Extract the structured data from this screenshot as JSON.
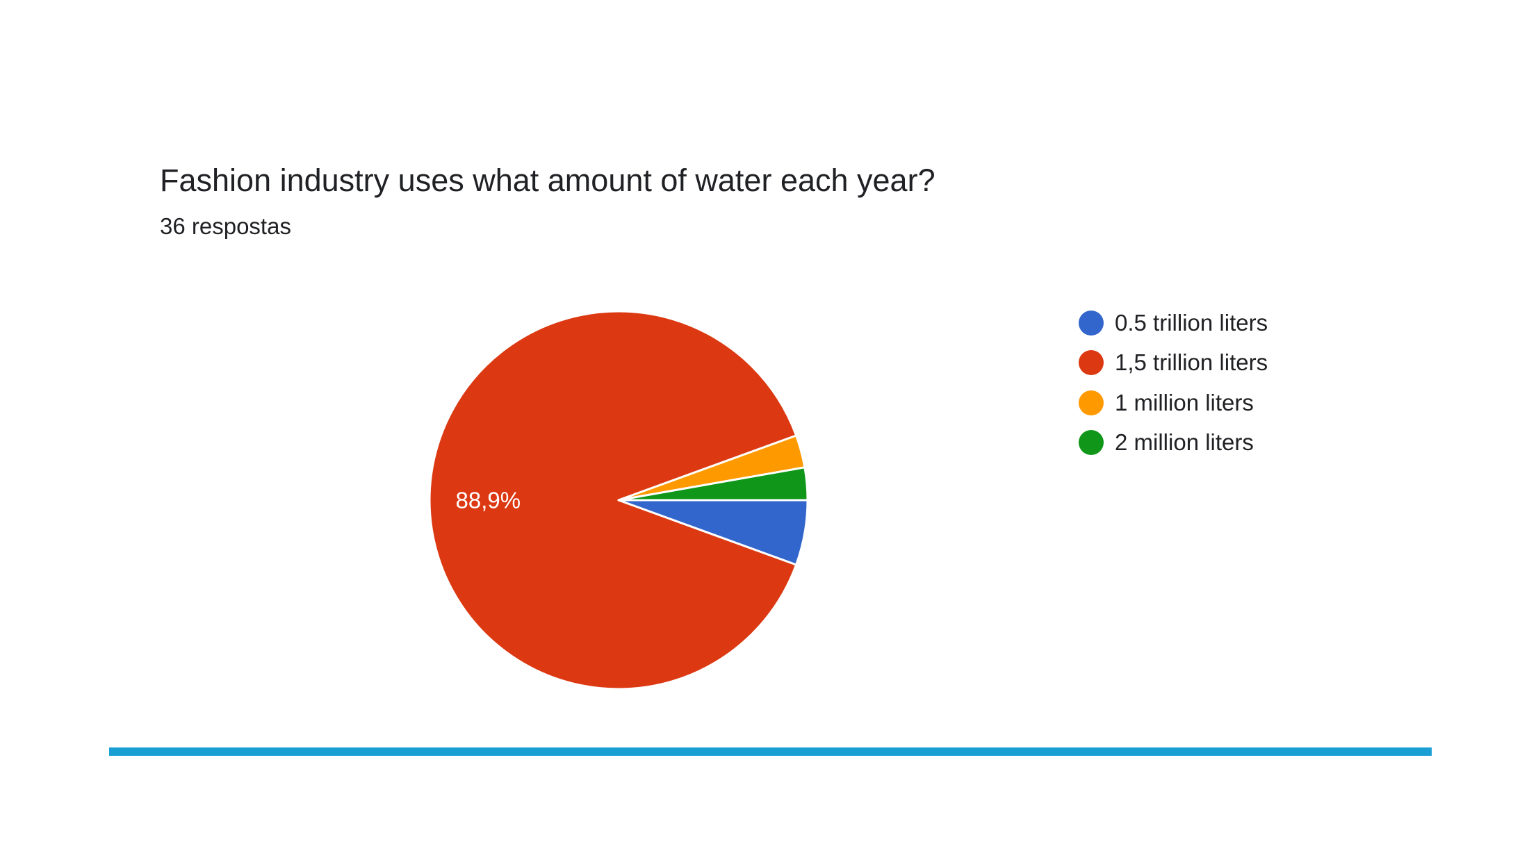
{
  "chart_data": {
    "type": "pie",
    "title": "Fashion industry uses what amount of water each year?",
    "subtitle": "36 respostas",
    "total_responses": 36,
    "slices": [
      {
        "label": "0.5 trillion liters",
        "count": 2,
        "percent": 5.6,
        "color": "#3366cc"
      },
      {
        "label": "1,5 trillion liters",
        "count": 32,
        "percent": 88.9,
        "color": "#dc3912",
        "data_label": "88,9%"
      },
      {
        "label": "1 million liters",
        "count": 1,
        "percent": 2.8,
        "color": "#ff9900"
      },
      {
        "label": "2 million liters",
        "count": 1,
        "percent": 2.8,
        "color": "#109618"
      }
    ],
    "start_direction": "3 o'clock",
    "slice_order": "clockwise",
    "legend_position": "right"
  },
  "accent_bar_color": "#1a9fd5"
}
